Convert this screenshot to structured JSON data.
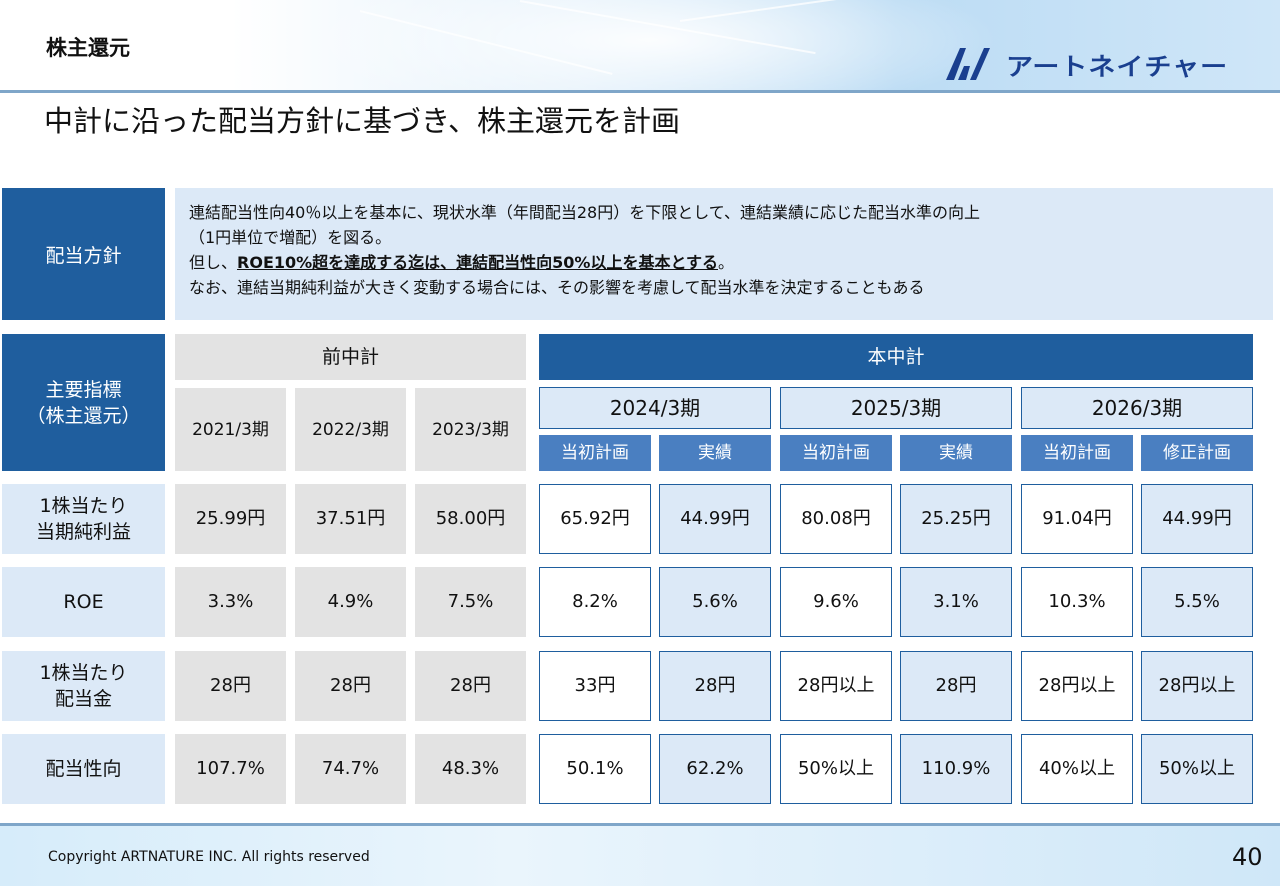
{
  "header": {
    "section_title": "株主還元",
    "logo_text": "アートネイチャー",
    "headline": "中計に沿った配当方針に基づき、株主還元を計画"
  },
  "policy": {
    "label": "配当方針",
    "line1": "連結配当性向40％以上を基本に、現状水準（年間配当28円）を下限として、連結業績に応じた配当水準の向上",
    "line2": "（1円単位で増配）を図る。",
    "line3_prefix": "但し、",
    "line3_emphasis": "ROE10%超を達成する迄は、連結配当性向50%以上を基本とする",
    "line3_suffix": "。",
    "line4": "なお、連結当期純利益が大きく変動する場合には、その影響を考慮して配当水準を決定することもある"
  },
  "table": {
    "corner_label": "主要指標\n（株主還元）",
    "group_prev": "前中計",
    "group_current": "本中計",
    "prev_years": [
      "2021/3期",
      "2022/3期",
      "2023/3期"
    ],
    "current_years": [
      "2024/3期",
      "2025/3期",
      "2026/3期"
    ],
    "sub_headers": [
      "当初計画",
      "実績",
      "当初計画",
      "実績",
      "当初計画",
      "修正計画"
    ],
    "rows": [
      {
        "label": "1株当たり\n当期純利益",
        "prev": [
          "25.99円",
          "37.51円",
          "58.00円"
        ],
        "current": [
          "65.92円",
          "44.99円",
          "80.08円",
          "25.25円",
          "91.04円",
          "44.99円"
        ]
      },
      {
        "label": "ROE",
        "prev": [
          "3.3%",
          "4.9%",
          "7.5%"
        ],
        "current": [
          "8.2%",
          "5.6%",
          "9.6%",
          "3.1%",
          "10.3%",
          "5.5%"
        ]
      },
      {
        "label": "1株当たり\n配当金",
        "prev": [
          "28円",
          "28円",
          "28円"
        ],
        "current": [
          "33円",
          "28円",
          "28円以上",
          "28円",
          "28円以上",
          "28円以上"
        ]
      },
      {
        "label": "配当性向",
        "prev": [
          "107.7%",
          "74.7%",
          "48.3%"
        ],
        "current": [
          "50.1%",
          "62.2%",
          "50%以上",
          "110.9%",
          "40%以上",
          "50%以上"
        ]
      }
    ]
  },
  "footer": {
    "copyright": "Copyright ARTNATURE INC. All rights reserved",
    "page_number": "40"
  },
  "colors": {
    "navy": "#1f5e9e",
    "mid_blue": "#4a7fc1",
    "light_blue": "#dce9f7",
    "gray": "#e3e3e3",
    "logo_blue": "#1a3f8f"
  }
}
